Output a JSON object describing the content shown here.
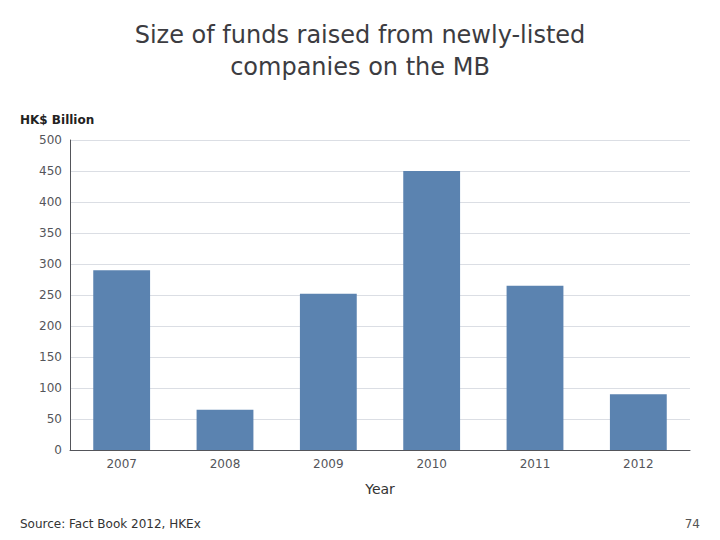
{
  "chart_data": {
    "type": "bar",
    "title": "Size of funds raised from newly-listed\ncompanies on the MB",
    "ylabel": "HK$ Billion",
    "xlabel": "Year",
    "categories": [
      "2007",
      "2008",
      "2009",
      "2010",
      "2011",
      "2012"
    ],
    "values": [
      290,
      65,
      252,
      450,
      265,
      90
    ],
    "color": "#5b83b0",
    "ylim": [
      0,
      500
    ],
    "yticks": [
      0,
      50,
      100,
      150,
      200,
      250,
      300,
      350,
      400,
      450,
      500
    ],
    "grid": true,
    "annotations": [
      "Source: Fact Book 2012, HKEx",
      "74"
    ]
  }
}
